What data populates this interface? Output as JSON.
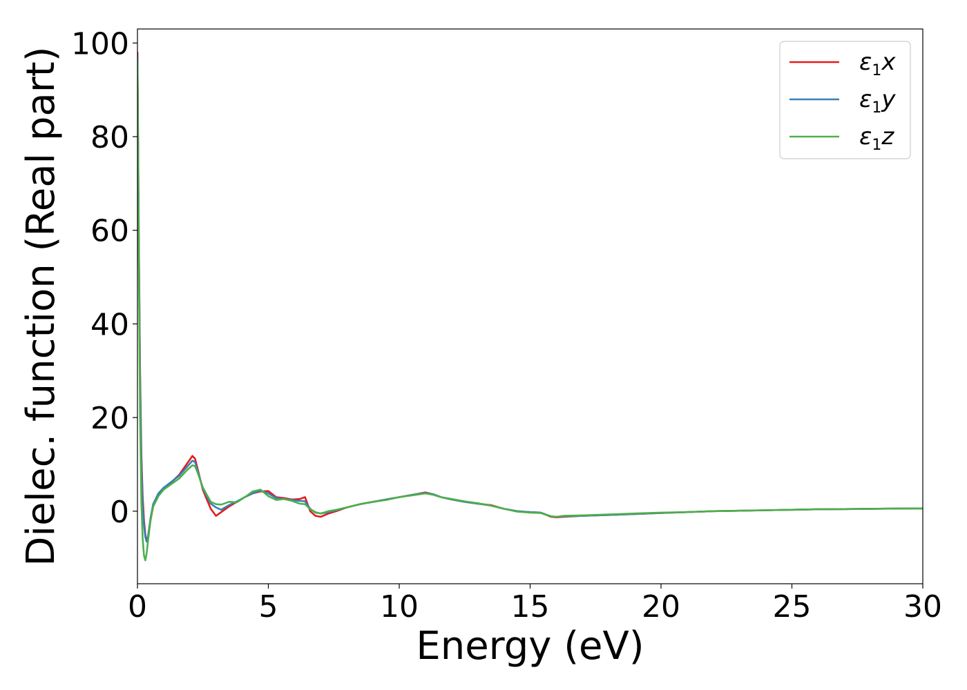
{
  "chart_data": {
    "type": "line",
    "title": "",
    "xlabel": "Energy (eV)",
    "ylabel": "Dielec. function (Real part)",
    "xlim": [
      0,
      30
    ],
    "ylim": [
      -15.5,
      103
    ],
    "xticks": [
      0,
      5,
      10,
      15,
      20,
      25,
      30
    ],
    "yticks": [
      0,
      20,
      40,
      60,
      80,
      100
    ],
    "grid": false,
    "legend_position": "top-right",
    "series": [
      {
        "name": "ε1x",
        "legend_main": "ε",
        "legend_sub": "1",
        "legend_suffix": "x",
        "color": "#e41a1c",
        "x": [
          0.0,
          0.05,
          0.1,
          0.15,
          0.2,
          0.25,
          0.3,
          0.35,
          0.4,
          0.5,
          0.6,
          0.8,
          1.0,
          1.3,
          1.6,
          1.9,
          2.1,
          2.2,
          2.3,
          2.5,
          2.8,
          3.0,
          3.2,
          3.5,
          3.8,
          4.1,
          4.4,
          4.7,
          5.0,
          5.3,
          5.6,
          5.9,
          6.2,
          6.4,
          6.6,
          6.8,
          7.0,
          7.3,
          7.6,
          8.0,
          8.5,
          9.0,
          9.5,
          10.0,
          10.5,
          11.0,
          11.3,
          11.6,
          12.0,
          12.5,
          13.0,
          13.5,
          14.0,
          14.5,
          15.0,
          15.4,
          15.8,
          16.0,
          16.3,
          17.0,
          18.0,
          19.0,
          20.0,
          21.0,
          22.0,
          23.0,
          24.0,
          25.0,
          26.0,
          27.0,
          28.0,
          29.0,
          30.0
        ],
        "values": [
          98,
          60,
          30,
          12,
          3,
          -2,
          -5,
          -6.5,
          -5.5,
          -2,
          1,
          3.5,
          4.8,
          6.2,
          7.8,
          10.2,
          11.8,
          11.2,
          9,
          4.5,
          0.5,
          -1,
          -0.2,
          1,
          2,
          3,
          3.8,
          4.2,
          4.3,
          3,
          2.8,
          2.5,
          2.6,
          3,
          0,
          -1,
          -1.2,
          -0.5,
          0,
          0.8,
          1.5,
          2,
          2.5,
          3,
          3.5,
          4,
          3.6,
          3,
          2.5,
          2,
          1.6,
          1.3,
          0.5,
          0,
          -0.2,
          -0.3,
          -1.2,
          -1.3,
          -1.2,
          -1.0,
          -0.8,
          -0.6,
          -0.4,
          -0.2,
          0,
          0.1,
          0.2,
          0.3,
          0.4,
          0.45,
          0.5,
          0.55,
          0.6
        ]
      },
      {
        "name": "ε1y",
        "legend_main": "ε",
        "legend_sub": "1",
        "legend_suffix": "y",
        "color": "#377eb8",
        "x": [
          0.0,
          0.05,
          0.1,
          0.15,
          0.2,
          0.25,
          0.3,
          0.35,
          0.4,
          0.5,
          0.6,
          0.8,
          1.0,
          1.3,
          1.6,
          1.9,
          2.1,
          2.2,
          2.3,
          2.5,
          2.8,
          3.0,
          3.2,
          3.5,
          3.8,
          4.1,
          4.4,
          4.7,
          5.0,
          5.3,
          5.6,
          5.9,
          6.2,
          6.4,
          6.6,
          6.8,
          7.0,
          7.3,
          7.6,
          8.0,
          8.5,
          9.0,
          9.5,
          10.0,
          10.5,
          11.0,
          11.3,
          11.6,
          12.0,
          12.5,
          13.0,
          13.5,
          14.0,
          14.5,
          15.0,
          15.4,
          15.8,
          16.0,
          16.3,
          17.0,
          18.0,
          19.0,
          20.0,
          21.0,
          22.0,
          23.0,
          24.0,
          25.0,
          26.0,
          27.0,
          28.0,
          29.0,
          30.0
        ],
        "values": [
          97,
          58,
          28,
          10,
          1,
          -3,
          -5.5,
          -6.5,
          -5.5,
          -1.5,
          1.5,
          3.8,
          5,
          6.3,
          7.6,
          9.5,
          10.8,
          10.5,
          8.6,
          4.8,
          1.6,
          0.8,
          0.3,
          1.3,
          2.1,
          3,
          3.8,
          4.4,
          3.8,
          2.8,
          2.6,
          2.4,
          2.2,
          2.1,
          0.5,
          -0.3,
          -0.5,
          -0.2,
          0.2,
          0.8,
          1.5,
          2,
          2.5,
          3,
          3.5,
          3.9,
          3.6,
          3,
          2.5,
          2,
          1.6,
          1.2,
          0.5,
          0,
          -0.2,
          -0.3,
          -1.1,
          -1.2,
          -1.1,
          -1.0,
          -0.8,
          -0.6,
          -0.4,
          -0.2,
          0,
          0.1,
          0.2,
          0.3,
          0.4,
          0.45,
          0.5,
          0.55,
          0.6
        ]
      },
      {
        "name": "ε1z",
        "legend_main": "ε",
        "legend_sub": "1",
        "legend_suffix": "z",
        "color": "#4daf4a",
        "x": [
          0.0,
          0.05,
          0.1,
          0.15,
          0.2,
          0.25,
          0.3,
          0.35,
          0.4,
          0.5,
          0.6,
          0.8,
          1.0,
          1.3,
          1.6,
          1.9,
          2.1,
          2.2,
          2.3,
          2.5,
          2.8,
          3.0,
          3.2,
          3.5,
          3.8,
          4.1,
          4.4,
          4.7,
          5.0,
          5.3,
          5.6,
          5.9,
          6.2,
          6.4,
          6.6,
          6.8,
          7.0,
          7.3,
          7.6,
          8.0,
          8.5,
          9.0,
          9.5,
          10.0,
          10.5,
          11.0,
          11.3,
          11.6,
          12.0,
          12.5,
          13.0,
          13.5,
          14.0,
          14.5,
          15.0,
          15.4,
          15.8,
          16.0,
          16.3,
          17.0,
          18.0,
          19.0,
          20.0,
          21.0,
          22.0,
          23.0,
          24.0,
          25.0,
          26.0,
          27.0,
          28.0,
          29.0,
          30.0
        ],
        "values": [
          96,
          55,
          20,
          2,
          -6,
          -9.5,
          -10.5,
          -9,
          -6.5,
          -2,
          1,
          3.2,
          4.6,
          5.8,
          7,
          8.8,
          9.8,
          9.6,
          8.2,
          5,
          2,
          1.5,
          1.4,
          2,
          1.9,
          3,
          4.2,
          4.6,
          3.2,
          2.4,
          2.6,
          2.2,
          1.6,
          1.5,
          0.4,
          -0.2,
          -0.5,
          0,
          0.3,
          0.8,
          1.5,
          2,
          2.4,
          3,
          3.4,
          3.8,
          3.5,
          3,
          2.6,
          2.1,
          1.7,
          1.2,
          0.5,
          -0.1,
          -0.3,
          -0.4,
          -1.1,
          -1.2,
          -1.0,
          -0.9,
          -0.7,
          -0.5,
          -0.3,
          -0.2,
          0,
          0.1,
          0.2,
          0.3,
          0.4,
          0.45,
          0.5,
          0.55,
          0.6
        ]
      }
    ]
  }
}
